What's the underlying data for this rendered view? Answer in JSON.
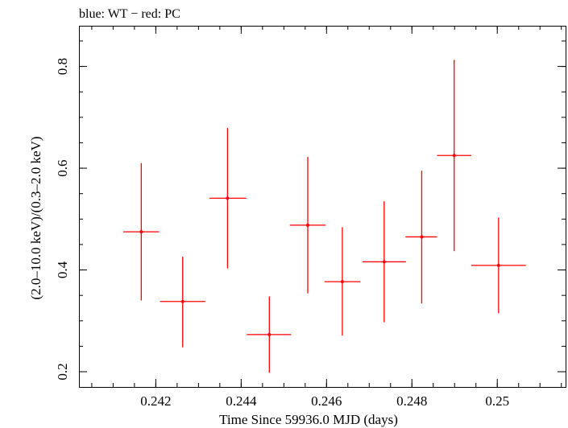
{
  "chart_data": {
    "type": "scatter",
    "title": "blue: WT − red: PC",
    "xlabel": "Time Since 59936.0 MJD (days)",
    "ylabel": "(2.0–10.0 keV)/(0.3–2.0 keV)",
    "xlim": [
      0.2402,
      0.2516
    ],
    "ylim": [
      0.17,
      0.88
    ],
    "x_ticks": [
      {
        "value": 0.242,
        "label": "0.242"
      },
      {
        "value": 0.244,
        "label": "0.244"
      },
      {
        "value": 0.246,
        "label": "0.246"
      },
      {
        "value": 0.248,
        "label": "0.248"
      },
      {
        "value": 0.25,
        "label": "0.25"
      }
    ],
    "y_ticks": [
      {
        "value": 0.2,
        "label": "0.2"
      },
      {
        "value": 0.4,
        "label": "0.4"
      },
      {
        "value": 0.6,
        "label": "0.6"
      },
      {
        "value": 0.8,
        "label": "0.8"
      }
    ],
    "x_minor_step": 0.0005,
    "y_minor_step": 0.05,
    "grid": false,
    "series": [
      {
        "color": "#ff0000",
        "points": [
          {
            "x": 0.24166,
            "y": 0.475,
            "xerr_lo": 0.00042,
            "xerr_hi": 0.00042,
            "y_lo": 0.34,
            "y_hi": 0.61
          },
          {
            "x": 0.24263,
            "y": 0.338,
            "xerr_lo": 0.00053,
            "xerr_hi": 0.00053,
            "y_lo": 0.248,
            "y_hi": 0.426
          },
          {
            "x": 0.24368,
            "y": 0.541,
            "xerr_lo": 0.00042,
            "xerr_hi": 0.00044,
            "y_lo": 0.403,
            "y_hi": 0.679
          },
          {
            "x": 0.24466,
            "y": 0.273,
            "xerr_lo": 0.00053,
            "xerr_hi": 0.00051,
            "y_lo": 0.198,
            "y_hi": 0.348
          },
          {
            "x": 0.24556,
            "y": 0.488,
            "xerr_lo": 0.00042,
            "xerr_hi": 0.00042,
            "y_lo": 0.354,
            "y_hi": 0.622
          },
          {
            "x": 0.24637,
            "y": 0.377,
            "xerr_lo": 0.00042,
            "xerr_hi": 0.00042,
            "y_lo": 0.271,
            "y_hi": 0.484
          },
          {
            "x": 0.24735,
            "y": 0.416,
            "xerr_lo": 0.00051,
            "xerr_hi": 0.00051,
            "y_lo": 0.297,
            "y_hi": 0.535
          },
          {
            "x": 0.24823,
            "y": 0.465,
            "xerr_lo": 0.00038,
            "xerr_hi": 0.00036,
            "y_lo": 0.334,
            "y_hi": 0.595
          },
          {
            "x": 0.24899,
            "y": 0.625,
            "xerr_lo": 0.0004,
            "xerr_hi": 0.0004,
            "y_lo": 0.437,
            "y_hi": 0.813
          },
          {
            "x": 0.25003,
            "y": 0.409,
            "xerr_lo": 0.00064,
            "xerr_hi": 0.00064,
            "y_lo": 0.315,
            "y_hi": 0.503
          }
        ]
      }
    ]
  }
}
